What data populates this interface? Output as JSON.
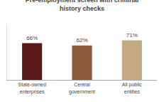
{
  "chart_data": {
    "type": "bar",
    "title": "Pre-employment screen with criminal\nhistory checks",
    "categories": [
      "State-owned\nenterprises",
      "Central\ngovernment",
      "All public\nentities"
    ],
    "values": [
      66,
      62,
      71
    ],
    "value_labels": [
      "66%",
      "62%",
      "71%"
    ],
    "colors": [
      "#5a1a1a",
      "#8b5a3a",
      "#c4a882"
    ],
    "data_labels": true,
    "ylim": [
      0,
      100
    ],
    "grid": false,
    "tick_labels": "x"
  }
}
